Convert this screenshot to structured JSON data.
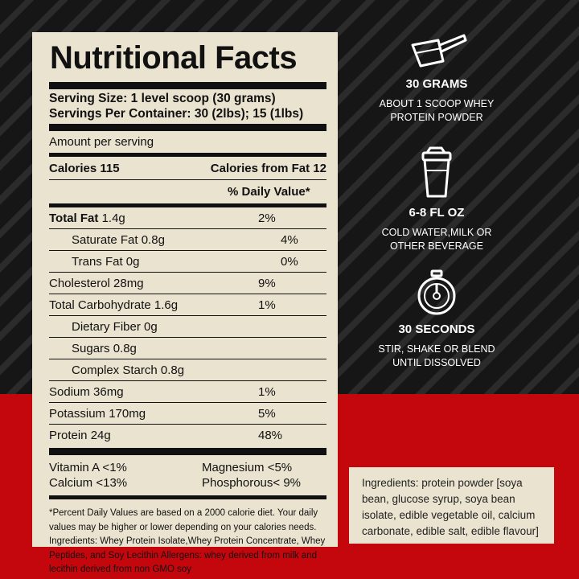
{
  "label": {
    "title": "Nutritional Facts",
    "serving_size": "Serving Size: 1 level scoop (30 grams)",
    "servings_per_container": "Servings Per Container: 30 (2lbs); 15 (1lbs)",
    "amount_per_serving": "Amount per serving",
    "calories": "Calories 115",
    "calories_from_fat": "Calories from Fat 12",
    "daily_value_header": "% Daily Value*",
    "nutrients": [
      {
        "name": "Total Fat",
        "amount": "1.4g",
        "dv": "2%"
      },
      {
        "name": "Saturate Fat 0.8g",
        "dv": "4%"
      },
      {
        "name": "Trans Fat 0g",
        "dv": "0%"
      },
      {
        "name": "Cholesterol 28mg",
        "dv": "9%"
      },
      {
        "name": "Total Carbohydrate 1.6g",
        "dv": "1%"
      },
      {
        "name": "Dietary Fiber 0g",
        "dv": ""
      },
      {
        "name": "Sugars 0.8g",
        "dv": ""
      },
      {
        "name": "Complex Starch 0.8g",
        "dv": ""
      },
      {
        "name": "Sodium 36mg",
        "dv": "1%"
      },
      {
        "name": "Potassium 170mg",
        "dv": "5%"
      },
      {
        "name": "Protein 24g",
        "dv": "48%"
      }
    ],
    "vitamins": [
      {
        "left": "Vitamin A <1%",
        "right": "Magnesium <5%"
      },
      {
        "left": "Calcium <13%",
        "right": "Phosphorous< 9%"
      }
    ],
    "footnote": "*Percent Daily Values are based on a 2000 calorie diet. Your daily values may be higher or lower depending on your calories needs. Ingredients: Whey Protein Isolate,Whey Protein Concentrate, Whey Peptides, and Soy Lecithin Allergens: whey derived from milk and lecithin derived from non GMO soy"
  },
  "steps": [
    {
      "icon": "scoop-icon",
      "title": "30 GRAMS",
      "desc_line1": "ABOUT 1 SCOOP WHEY",
      "desc_line2": "PROTEIN POWDER"
    },
    {
      "icon": "shaker-bottle-icon",
      "title": "6-8 FL OZ",
      "desc_line1": "COLD WATER,MILK OR",
      "desc_line2": "OTHER BEVERAGE"
    },
    {
      "icon": "stopwatch-icon",
      "title": "30 SECONDS",
      "desc_line1": "STIR, SHAKE OR BLEND",
      "desc_line2": "UNTIL DISSOLVED"
    }
  ],
  "ingredients_box": "Ingredients: protein powder [soya bean, glucose syrup, soya bean isolate, edible vegetable oil, calcium carbonate, edible salt, edible flavour]",
  "colors": {
    "background_dark": "#161616",
    "background_red": "#c4060d",
    "label_bg": "#eae3cf",
    "text_dark": "#111111",
    "text_light": "#ffffff"
  }
}
